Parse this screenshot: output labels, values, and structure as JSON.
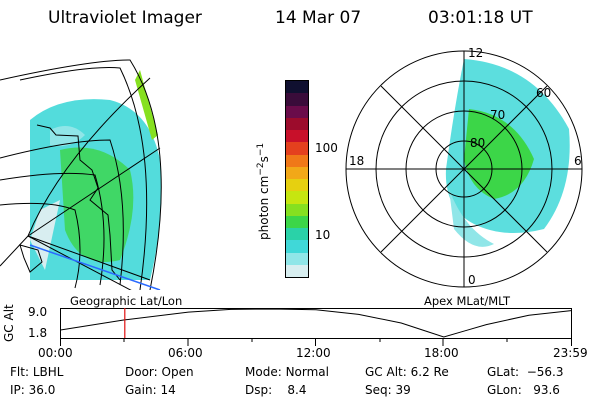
{
  "header": {
    "instrument": "Ultraviolet Imager",
    "date": "14 Mar 07",
    "time": "03:01:18 UT"
  },
  "colorbar": {
    "unit_label": "photon cm",
    "unit_exp1": "−2",
    "unit_mid": "s",
    "unit_exp2": "−1",
    "ticks": [
      "100",
      "10"
    ],
    "colors": [
      "#101030",
      "#3a0c3a",
      "#6a0c4a",
      "#9c0c2c",
      "#c8102a",
      "#e4401e",
      "#f07818",
      "#f2a818",
      "#e6d010",
      "#c6e610",
      "#86e020",
      "#3cd648",
      "#2ad2a8",
      "#40d8d8",
      "#90e6e8",
      "#d8eef0"
    ]
  },
  "left_map": {
    "label": "Geographic Lat/Lon"
  },
  "right_map": {
    "label": "Apex MLat/MLT",
    "mlt_labels": {
      "top": "12",
      "left": "18",
      "right": "6",
      "bottom": "0"
    },
    "lat_labels": [
      "60",
      "70",
      "80"
    ]
  },
  "plot": {
    "ylabel": "GC Alt",
    "y_ticks": [
      "9.0",
      "1.8"
    ],
    "x_ticks": [
      "00:00",
      "06:00",
      "12:00",
      "18:00",
      "23:59"
    ],
    "current_time_hours": 3.02,
    "altitude_points": [
      [
        0,
        3.6
      ],
      [
        3,
        6.2
      ],
      [
        6,
        8.2
      ],
      [
        8,
        8.9
      ],
      [
        10,
        9.0
      ],
      [
        12,
        8.8
      ],
      [
        14,
        7.6
      ],
      [
        16,
        5.4
      ],
      [
        17,
        3.6
      ],
      [
        18,
        1.8
      ],
      [
        19,
        3.4
      ],
      [
        20,
        5.0
      ],
      [
        22,
        7.4
      ],
      [
        23.98,
        8.6
      ]
    ]
  },
  "info": {
    "flt_label": "Flt:",
    "flt_value": "LBHL",
    "ip_label": "IP:",
    "ip_value": "36.0",
    "door_label": "Door:",
    "door_value": "Open",
    "gain_label": "Gain:",
    "gain_value": "14",
    "mode_label": "Mode:",
    "mode_value": "Normal",
    "dsp_label": "Dsp:",
    "dsp_value": "8.4",
    "gcalt_label": "GC Alt:",
    "gcalt_value": "6.2 Re",
    "seq_label": "Seq:",
    "seq_value": "39",
    "glat_label": "GLat:",
    "glat_value": "−56.3",
    "glon_label": "GLon:",
    "glon_value": "93.6"
  }
}
